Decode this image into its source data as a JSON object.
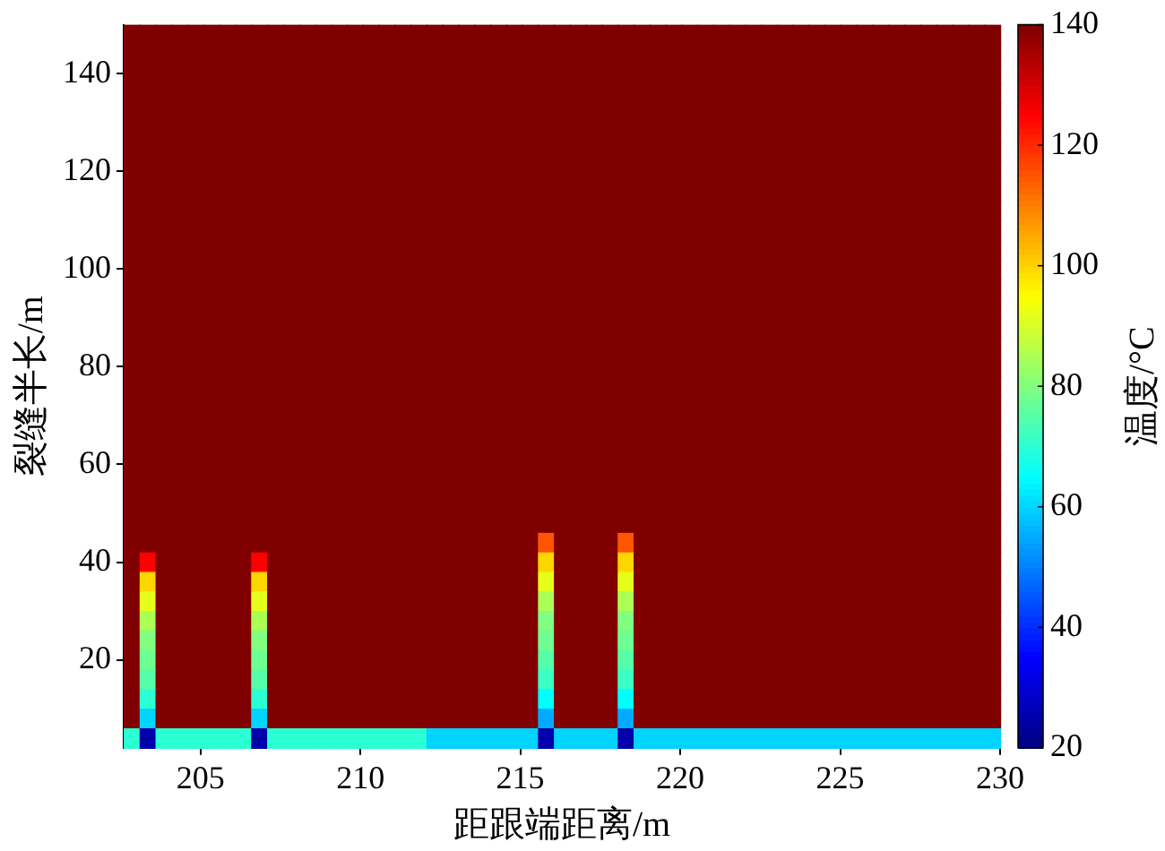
{
  "chart_data": {
    "type": "heatmap",
    "xlabel": "距跟端距离/m",
    "ylabel": "裂缝半长/m",
    "clabel": "温度/°C",
    "xlim": [
      202.6,
      230
    ],
    "xticks": [
      205,
      210,
      215,
      220,
      225,
      230
    ],
    "ylim": [
      2,
      150
    ],
    "yticks": [
      20,
      40,
      60,
      80,
      100,
      120,
      140
    ],
    "clim": [
      20,
      140
    ],
    "cticks": [
      20,
      40,
      60,
      80,
      100,
      120,
      140
    ],
    "grid": false,
    "cells": [
      [
        140,
        140,
        140,
        140,
        140,
        140,
        140,
        140,
        140,
        140,
        140,
        140,
        140,
        140,
        140,
        140,
        140,
        140,
        140,
        140,
        140,
        140,
        140,
        140,
        140,
        140,
        140,
        140,
        140,
        140,
        140,
        140,
        140,
        140,
        140,
        140,
        140,
        140,
        140,
        140,
        140,
        140,
        140,
        140,
        140,
        140,
        140,
        140,
        140,
        140,
        140,
        140,
        140,
        140,
        140
      ],
      [
        140,
        140,
        140,
        140,
        140,
        140,
        140,
        140,
        140,
        140,
        140,
        140,
        140,
        140,
        140,
        140,
        140,
        140,
        140,
        140,
        140,
        140,
        140,
        140,
        140,
        140,
        140,
        140,
        140,
        140,
        140,
        140,
        140,
        140,
        140,
        140,
        140,
        140,
        140,
        140,
        140,
        140,
        140,
        140,
        140,
        140,
        140,
        140,
        140,
        140,
        140,
        140,
        140,
        140,
        140
      ],
      [
        140,
        140,
        140,
        140,
        140,
        140,
        140,
        140,
        140,
        140,
        140,
        140,
        140,
        140,
        140,
        140,
        140,
        140,
        140,
        140,
        140,
        140,
        140,
        140,
        140,
        140,
        140,
        140,
        140,
        140,
        140,
        140,
        140,
        140,
        140,
        140,
        140,
        140,
        140,
        140,
        140,
        140,
        140,
        140,
        140,
        140,
        140,
        140,
        140,
        140,
        140,
        140,
        140,
        140,
        140
      ],
      [
        140,
        140,
        140,
        140,
        140,
        140,
        140,
        140,
        140,
        140,
        140,
        140,
        140,
        140,
        140,
        140,
        140,
        140,
        140,
        140,
        140,
        140,
        140,
        140,
        140,
        140,
        140,
        140,
        140,
        140,
        140,
        140,
        140,
        140,
        140,
        140,
        140,
        140,
        140,
        140,
        140,
        140,
        140,
        140,
        140,
        140,
        140,
        140,
        140,
        140,
        140,
        140,
        140,
        140,
        140
      ],
      [
        140,
        140,
        140,
        140,
        140,
        140,
        140,
        140,
        140,
        140,
        140,
        140,
        140,
        140,
        140,
        140,
        140,
        140,
        140,
        140,
        140,
        140,
        140,
        140,
        140,
        140,
        140,
        140,
        140,
        140,
        140,
        140,
        140,
        140,
        140,
        140,
        140,
        140,
        140,
        140,
        140,
        140,
        140,
        140,
        140,
        140,
        140,
        140,
        140,
        140,
        140,
        140,
        140,
        140,
        140
      ],
      [
        140,
        140,
        140,
        140,
        140,
        140,
        140,
        140,
        140,
        140,
        140,
        140,
        140,
        140,
        140,
        140,
        140,
        140,
        140,
        140,
        140,
        140,
        140,
        140,
        140,
        140,
        140,
        140,
        140,
        140,
        140,
        140,
        140,
        140,
        140,
        140,
        140,
        140,
        140,
        140,
        140,
        140,
        140,
        140,
        140,
        140,
        140,
        140,
        140,
        140,
        140,
        140,
        140,
        140,
        140
      ],
      [
        140,
        140,
        140,
        140,
        140,
        140,
        140,
        140,
        140,
        140,
        140,
        140,
        140,
        140,
        140,
        140,
        140,
        140,
        140,
        140,
        140,
        140,
        140,
        140,
        140,
        140,
        140,
        140,
        140,
        140,
        140,
        140,
        140,
        140,
        140,
        140,
        140,
        140,
        140,
        140,
        140,
        140,
        140,
        140,
        140,
        140,
        140,
        140,
        140,
        140,
        140,
        140,
        140,
        140,
        140
      ],
      [
        140,
        140,
        140,
        140,
        140,
        140,
        140,
        140,
        140,
        140,
        140,
        140,
        140,
        140,
        140,
        140,
        140,
        140,
        140,
        140,
        140,
        140,
        140,
        140,
        140,
        140,
        140,
        140,
        140,
        140,
        140,
        140,
        140,
        140,
        140,
        140,
        140,
        140,
        140,
        140,
        140,
        140,
        140,
        140,
        140,
        140,
        140,
        140,
        140,
        140,
        140,
        140,
        140,
        140,
        140
      ],
      [
        140,
        140,
        140,
        140,
        140,
        140,
        140,
        140,
        140,
        140,
        140,
        140,
        140,
        140,
        140,
        140,
        140,
        140,
        140,
        140,
        140,
        140,
        140,
        140,
        140,
        140,
        140,
        140,
        140,
        140,
        140,
        140,
        140,
        140,
        140,
        140,
        140,
        140,
        140,
        140,
        140,
        140,
        140,
        140,
        140,
        140,
        140,
        140,
        140,
        140,
        140,
        140,
        140,
        140,
        140
      ],
      [
        140,
        140,
        140,
        140,
        140,
        140,
        140,
        140,
        140,
        140,
        140,
        140,
        140,
        140,
        140,
        140,
        140,
        140,
        140,
        140,
        140,
        140,
        140,
        140,
        140,
        140,
        140,
        140,
        140,
        140,
        140,
        140,
        140,
        140,
        140,
        140,
        140,
        140,
        140,
        140,
        140,
        140,
        140,
        140,
        140,
        140,
        140,
        140,
        140,
        140,
        140,
        140,
        140,
        140,
        140
      ],
      [
        140,
        140,
        140,
        140,
        140,
        140,
        140,
        140,
        140,
        140,
        140,
        140,
        140,
        140,
        140,
        140,
        140,
        140,
        140,
        140,
        140,
        140,
        140,
        140,
        140,
        140,
        140,
        140,
        140,
        140,
        140,
        140,
        140,
        140,
        140,
        140,
        140,
        140,
        140,
        140,
        140,
        140,
        140,
        140,
        140,
        140,
        140,
        140,
        140,
        140,
        140,
        140,
        140,
        140,
        140
      ],
      [
        140,
        140,
        140,
        140,
        140,
        140,
        140,
        140,
        140,
        140,
        140,
        140,
        140,
        140,
        140,
        140,
        140,
        140,
        140,
        140,
        140,
        140,
        140,
        140,
        140,
        140,
        140,
        140,
        140,
        140,
        140,
        140,
        140,
        140,
        140,
        140,
        140,
        140,
        140,
        140,
        140,
        140,
        140,
        140,
        140,
        140,
        140,
        140,
        140,
        140,
        140,
        140,
        140,
        140,
        140
      ],
      [
        140,
        140,
        140,
        140,
        140,
        140,
        140,
        140,
        140,
        140,
        140,
        140,
        140,
        140,
        140,
        140,
        140,
        140,
        140,
        140,
        140,
        140,
        140,
        140,
        140,
        140,
        140,
        140,
        140,
        140,
        140,
        140,
        140,
        140,
        140,
        140,
        140,
        140,
        140,
        140,
        140,
        140,
        140,
        140,
        140,
        140,
        140,
        140,
        140,
        140,
        140,
        140,
        140,
        140,
        140
      ],
      [
        140,
        140,
        140,
        140,
        140,
        140,
        140,
        140,
        140,
        140,
        140,
        140,
        140,
        140,
        140,
        140,
        140,
        140,
        140,
        140,
        140,
        140,
        140,
        140,
        140,
        140,
        140,
        140,
        140,
        140,
        140,
        140,
        140,
        140,
        140,
        140,
        140,
        140,
        140,
        140,
        140,
        140,
        140,
        140,
        140,
        140,
        140,
        140,
        140,
        140,
        140,
        140,
        140,
        140,
        140
      ],
      [
        140,
        140,
        140,
        140,
        140,
        140,
        140,
        140,
        140,
        140,
        140,
        140,
        140,
        140,
        140,
        140,
        140,
        140,
        140,
        140,
        140,
        140,
        140,
        140,
        140,
        140,
        140,
        140,
        140,
        140,
        140,
        140,
        140,
        140,
        140,
        140,
        140,
        140,
        140,
        140,
        140,
        140,
        140,
        140,
        140,
        140,
        140,
        140,
        140,
        140,
        140,
        140,
        140,
        140,
        140
      ],
      [
        140,
        140,
        140,
        140,
        140,
        140,
        140,
        140,
        140,
        140,
        140,
        140,
        140,
        140,
        140,
        140,
        140,
        140,
        140,
        140,
        140,
        140,
        140,
        140,
        140,
        140,
        140,
        140,
        140,
        140,
        140,
        140,
        140,
        140,
        140,
        140,
        140,
        140,
        140,
        140,
        140,
        140,
        140,
        140,
        140,
        140,
        140,
        140,
        140,
        140,
        140,
        140,
        140,
        140,
        140
      ],
      [
        140,
        140,
        140,
        140,
        140,
        140,
        140,
        140,
        140,
        140,
        140,
        140,
        140,
        140,
        140,
        140,
        140,
        140,
        140,
        140,
        140,
        140,
        140,
        140,
        140,
        140,
        140,
        140,
        140,
        140,
        140,
        140,
        140,
        140,
        140,
        140,
        140,
        140,
        140,
        140,
        140,
        140,
        140,
        140,
        140,
        140,
        140,
        140,
        140,
        140,
        140,
        140,
        140,
        140,
        140
      ],
      [
        140,
        140,
        140,
        140,
        140,
        140,
        140,
        140,
        140,
        140,
        140,
        140,
        140,
        140,
        140,
        140,
        140,
        140,
        140,
        140,
        140,
        140,
        140,
        140,
        140,
        140,
        140,
        140,
        140,
        140,
        140,
        140,
        140,
        140,
        140,
        140,
        140,
        140,
        140,
        140,
        140,
        140,
        140,
        140,
        140,
        140,
        140,
        140,
        140,
        140,
        140,
        140,
        140,
        140,
        140
      ],
      [
        140,
        140,
        140,
        140,
        140,
        140,
        140,
        140,
        140,
        140,
        140,
        140,
        140,
        140,
        140,
        140,
        140,
        140,
        140,
        140,
        140,
        140,
        140,
        140,
        140,
        140,
        140,
        140,
        140,
        140,
        140,
        140,
        140,
        140,
        140,
        140,
        140,
        140,
        140,
        140,
        140,
        140,
        140,
        140,
        140,
        140,
        140,
        140,
        140,
        140,
        140,
        140,
        140,
        140,
        140
      ],
      [
        140,
        140,
        140,
        140,
        140,
        140,
        140,
        140,
        140,
        140,
        140,
        140,
        140,
        140,
        140,
        140,
        140,
        140,
        140,
        140,
        140,
        140,
        140,
        140,
        140,
        140,
        140,
        140,
        140,
        140,
        140,
        140,
        140,
        140,
        140,
        140,
        140,
        140,
        140,
        140,
        140,
        140,
        140,
        140,
        140,
        140,
        140,
        140,
        140,
        140,
        140,
        140,
        140,
        140,
        140
      ],
      [
        140,
        140,
        140,
        140,
        140,
        140,
        140,
        140,
        140,
        140,
        140,
        140,
        140,
        140,
        140,
        140,
        140,
        140,
        140,
        140,
        140,
        140,
        140,
        140,
        140,
        140,
        140,
        140,
        140,
        140,
        140,
        140,
        140,
        140,
        140,
        140,
        140,
        140,
        140,
        140,
        140,
        140,
        140,
        140,
        140,
        140,
        140,
        140,
        140,
        140,
        140,
        140,
        140,
        140,
        140
      ],
      [
        140,
        140,
        140,
        140,
        140,
        140,
        140,
        140,
        140,
        140,
        140,
        140,
        140,
        140,
        140,
        140,
        140,
        140,
        140,
        140,
        140,
        140,
        140,
        140,
        140,
        140,
        140,
        140,
        140,
        140,
        140,
        140,
        140,
        140,
        140,
        140,
        140,
        140,
        140,
        140,
        140,
        140,
        140,
        140,
        140,
        140,
        140,
        140,
        140,
        140,
        140,
        140,
        140,
        140,
        140
      ],
      [
        140,
        140,
        140,
        140,
        140,
        140,
        140,
        140,
        140,
        140,
        140,
        140,
        140,
        140,
        140,
        140,
        140,
        140,
        140,
        140,
        140,
        140,
        140,
        140,
        140,
        140,
        140,
        140,
        140,
        140,
        140,
        140,
        140,
        140,
        140,
        140,
        140,
        140,
        140,
        140,
        140,
        140,
        140,
        140,
        140,
        140,
        140,
        140,
        140,
        140,
        140,
        140,
        140,
        140,
        140
      ],
      [
        140,
        140,
        140,
        140,
        140,
        140,
        140,
        140,
        140,
        140,
        140,
        140,
        140,
        140,
        140,
        140,
        140,
        140,
        140,
        140,
        140,
        140,
        140,
        140,
        140,
        140,
        140,
        140,
        140,
        140,
        140,
        140,
        140,
        140,
        140,
        140,
        140,
        140,
        140,
        140,
        140,
        140,
        140,
        140,
        140,
        140,
        140,
        140,
        140,
        140,
        140,
        140,
        140,
        140,
        140
      ],
      [
        140,
        140,
        140,
        140,
        140,
        140,
        140,
        140,
        140,
        140,
        140,
        140,
        140,
        140,
        140,
        140,
        140,
        140,
        140,
        140,
        140,
        140,
        140,
        140,
        140,
        140,
        140,
        140,
        140,
        140,
        140,
        140,
        140,
        140,
        140,
        140,
        140,
        140,
        140,
        140,
        140,
        140,
        140,
        140,
        140,
        140,
        140,
        140,
        140,
        140,
        140,
        140,
        140,
        140,
        140
      ],
      [
        140,
        140,
        140,
        140,
        140,
        140,
        140,
        140,
        140,
        140,
        140,
        140,
        140,
        140,
        140,
        140,
        140,
        140,
        140,
        140,
        140,
        140,
        140,
        140,
        140,
        140,
        140,
        140,
        140,
        140,
        140,
        140,
        140,
        140,
        140,
        140,
        140,
        140,
        140,
        140,
        140,
        140,
        140,
        140,
        140,
        140,
        140,
        140,
        140,
        140,
        140,
        140,
        140,
        140,
        140
      ],
      [
        140,
        140,
        140,
        140,
        140,
        140,
        140,
        140,
        140,
        140,
        140,
        140,
        140,
        140,
        140,
        140,
        140,
        140,
        140,
        140,
        140,
        140,
        140,
        140,
        140,
        140,
        115,
        140,
        140,
        140,
        140,
        115,
        140,
        140,
        140,
        140,
        140,
        140,
        140,
        140,
        140,
        140,
        140,
        140,
        140,
        140,
        140,
        140,
        140,
        140,
        140,
        140,
        140,
        140,
        140
      ],
      [
        140,
        125,
        140,
        140,
        140,
        140,
        140,
        140,
        125,
        140,
        140,
        140,
        140,
        140,
        140,
        140,
        140,
        140,
        140,
        140,
        140,
        140,
        140,
        140,
        140,
        140,
        100,
        140,
        140,
        140,
        140,
        100,
        140,
        140,
        140,
        140,
        140,
        140,
        140,
        140,
        140,
        140,
        140,
        140,
        140,
        140,
        140,
        140,
        140,
        140,
        140,
        140,
        140,
        140,
        140
      ],
      [
        140,
        100,
        140,
        140,
        140,
        140,
        140,
        140,
        100,
        140,
        140,
        140,
        140,
        140,
        140,
        140,
        140,
        140,
        140,
        140,
        140,
        140,
        140,
        140,
        140,
        140,
        92,
        140,
        140,
        140,
        140,
        92,
        140,
        140,
        140,
        140,
        140,
        140,
        140,
        140,
        140,
        140,
        140,
        140,
        140,
        140,
        140,
        140,
        140,
        140,
        140,
        140,
        140,
        140,
        140
      ],
      [
        140,
        92,
        140,
        140,
        140,
        140,
        140,
        140,
        92,
        140,
        140,
        140,
        140,
        140,
        140,
        140,
        140,
        140,
        140,
        140,
        140,
        140,
        140,
        140,
        140,
        140,
        85,
        140,
        140,
        140,
        140,
        85,
        140,
        140,
        140,
        140,
        140,
        140,
        140,
        140,
        140,
        140,
        140,
        140,
        140,
        140,
        140,
        140,
        140,
        140,
        140,
        140,
        140,
        140,
        140
      ],
      [
        140,
        85,
        140,
        140,
        140,
        140,
        140,
        140,
        85,
        140,
        140,
        140,
        140,
        140,
        140,
        140,
        140,
        140,
        140,
        140,
        140,
        140,
        140,
        140,
        140,
        140,
        80,
        140,
        140,
        140,
        140,
        80,
        140,
        140,
        140,
        140,
        140,
        140,
        140,
        140,
        140,
        140,
        140,
        140,
        140,
        140,
        140,
        140,
        140,
        140,
        140,
        140,
        140,
        140,
        140
      ],
      [
        140,
        80,
        140,
        140,
        140,
        140,
        140,
        140,
        80,
        140,
        140,
        140,
        140,
        140,
        140,
        140,
        140,
        140,
        140,
        140,
        140,
        140,
        140,
        140,
        140,
        140,
        78,
        140,
        140,
        140,
        140,
        78,
        140,
        140,
        140,
        140,
        140,
        140,
        140,
        140,
        140,
        140,
        140,
        140,
        140,
        140,
        140,
        140,
        140,
        140,
        140,
        140,
        140,
        140,
        140
      ],
      [
        140,
        78,
        140,
        140,
        140,
        140,
        140,
        140,
        78,
        140,
        140,
        140,
        140,
        140,
        140,
        140,
        140,
        140,
        140,
        140,
        140,
        140,
        140,
        140,
        140,
        140,
        75,
        140,
        140,
        140,
        140,
        75,
        140,
        140,
        140,
        140,
        140,
        140,
        140,
        140,
        140,
        140,
        140,
        140,
        140,
        140,
        140,
        140,
        140,
        140,
        140,
        140,
        140,
        140,
        140
      ],
      [
        140,
        75,
        140,
        140,
        140,
        140,
        140,
        140,
        75,
        140,
        140,
        140,
        140,
        140,
        140,
        140,
        140,
        140,
        140,
        140,
        140,
        140,
        140,
        140,
        140,
        140,
        72,
        140,
        140,
        140,
        140,
        72,
        140,
        140,
        140,
        140,
        140,
        140,
        140,
        140,
        140,
        140,
        140,
        140,
        140,
        140,
        140,
        140,
        140,
        140,
        140,
        140,
        140,
        140,
        140
      ],
      [
        140,
        70,
        140,
        140,
        140,
        140,
        140,
        140,
        70,
        140,
        140,
        140,
        140,
        140,
        140,
        140,
        140,
        140,
        140,
        140,
        140,
        140,
        140,
        140,
        140,
        140,
        65,
        140,
        140,
        140,
        140,
        65,
        140,
        140,
        140,
        140,
        140,
        140,
        140,
        140,
        140,
        140,
        140,
        140,
        140,
        140,
        140,
        140,
        140,
        140,
        140,
        140,
        140,
        140,
        140
      ],
      [
        140,
        60,
        140,
        140,
        140,
        140,
        140,
        140,
        60,
        140,
        140,
        140,
        140,
        140,
        140,
        140,
        140,
        140,
        140,
        140,
        140,
        140,
        140,
        140,
        140,
        140,
        55,
        140,
        140,
        140,
        140,
        55,
        140,
        140,
        140,
        140,
        140,
        140,
        140,
        140,
        140,
        140,
        140,
        140,
        140,
        140,
        140,
        140,
        140,
        140,
        140,
        140,
        140,
        140,
        140
      ],
      [
        70,
        25,
        70,
        70,
        70,
        70,
        70,
        70,
        25,
        70,
        70,
        70,
        70,
        70,
        70,
        70,
        70,
        70,
        70,
        60,
        60,
        60,
        60,
        60,
        60,
        60,
        25,
        60,
        60,
        60,
        60,
        25,
        60,
        60,
        60,
        60,
        60,
        60,
        60,
        60,
        60,
        60,
        60,
        60,
        60,
        60,
        60,
        60,
        60,
        60,
        60,
        60,
        60,
        60,
        60
      ]
    ]
  }
}
